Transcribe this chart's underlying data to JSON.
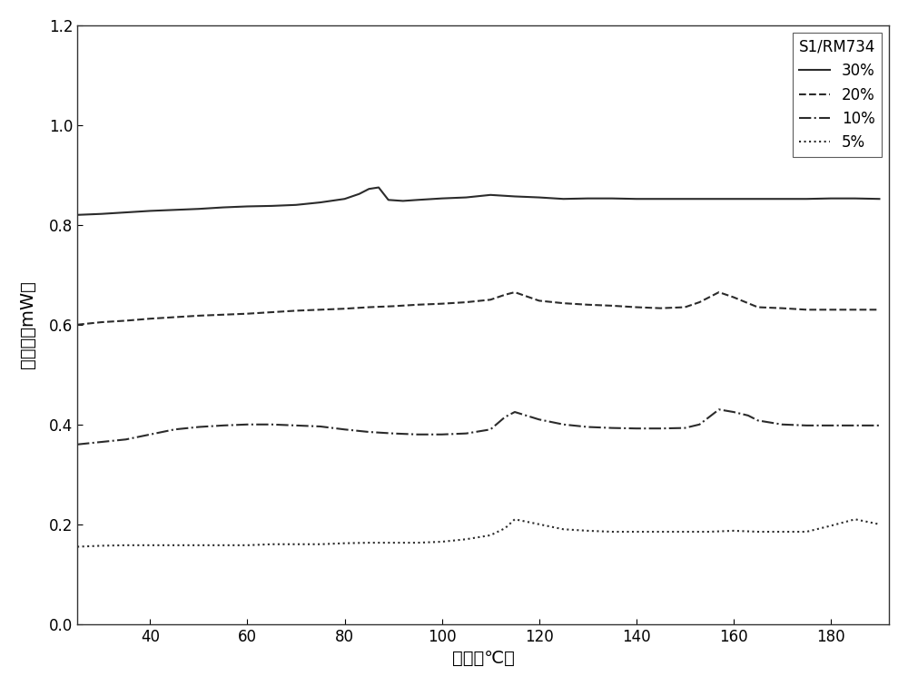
{
  "title": "",
  "xlabel": "温度（℃）",
  "ylabel": "热流率（mW）",
  "xlim": [
    25,
    192
  ],
  "ylim": [
    0.0,
    1.2
  ],
  "xticks": [
    40,
    60,
    80,
    100,
    120,
    140,
    160,
    180
  ],
  "yticks": [
    0.0,
    0.2,
    0.4,
    0.6,
    0.8,
    1.0,
    1.2
  ],
  "legend_title": "S1/RM734",
  "legend_labels": [
    "30%",
    "20%",
    "10%",
    "5%"
  ],
  "line_styles": [
    "-",
    "--",
    "-.",
    ":"
  ],
  "line_color": "#2b2b2b",
  "line_width": 1.5,
  "background_color": "#ffffff",
  "series": {
    "30pct": {
      "x": [
        25,
        30,
        35,
        40,
        45,
        50,
        55,
        60,
        65,
        70,
        75,
        80,
        83,
        85,
        87,
        89,
        92,
        95,
        100,
        105,
        110,
        115,
        120,
        125,
        130,
        135,
        140,
        145,
        150,
        155,
        160,
        165,
        170,
        175,
        180,
        185,
        190
      ],
      "y": [
        0.82,
        0.822,
        0.825,
        0.828,
        0.83,
        0.832,
        0.835,
        0.837,
        0.838,
        0.84,
        0.845,
        0.852,
        0.862,
        0.872,
        0.875,
        0.85,
        0.848,
        0.85,
        0.853,
        0.855,
        0.86,
        0.857,
        0.855,
        0.852,
        0.853,
        0.853,
        0.852,
        0.852,
        0.852,
        0.852,
        0.852,
        0.852,
        0.852,
        0.852,
        0.853,
        0.853,
        0.852
      ]
    },
    "20pct": {
      "x": [
        25,
        30,
        35,
        40,
        45,
        50,
        55,
        60,
        65,
        70,
        75,
        80,
        85,
        90,
        95,
        100,
        105,
        110,
        113,
        115,
        120,
        125,
        130,
        135,
        140,
        145,
        150,
        153,
        157,
        160,
        165,
        170,
        175,
        180,
        185,
        190
      ],
      "y": [
        0.6,
        0.605,
        0.608,
        0.612,
        0.615,
        0.618,
        0.62,
        0.622,
        0.625,
        0.628,
        0.63,
        0.632,
        0.635,
        0.637,
        0.64,
        0.642,
        0.645,
        0.65,
        0.66,
        0.665,
        0.648,
        0.643,
        0.64,
        0.638,
        0.635,
        0.633,
        0.635,
        0.645,
        0.665,
        0.655,
        0.635,
        0.633,
        0.63,
        0.63,
        0.63,
        0.63
      ]
    },
    "10pct": {
      "x": [
        25,
        30,
        35,
        40,
        45,
        50,
        55,
        60,
        65,
        70,
        75,
        80,
        85,
        90,
        95,
        100,
        105,
        110,
        113,
        115,
        120,
        125,
        130,
        135,
        140,
        145,
        150,
        153,
        157,
        160,
        163,
        165,
        170,
        175,
        180,
        185,
        190
      ],
      "y": [
        0.36,
        0.365,
        0.37,
        0.38,
        0.39,
        0.395,
        0.398,
        0.4,
        0.4,
        0.398,
        0.396,
        0.39,
        0.385,
        0.382,
        0.38,
        0.38,
        0.382,
        0.39,
        0.415,
        0.425,
        0.41,
        0.4,
        0.395,
        0.393,
        0.392,
        0.392,
        0.393,
        0.4,
        0.43,
        0.425,
        0.418,
        0.408,
        0.4,
        0.398,
        0.398,
        0.398,
        0.398
      ]
    },
    "5pct": {
      "x": [
        25,
        30,
        35,
        40,
        45,
        50,
        55,
        60,
        65,
        70,
        75,
        80,
        85,
        90,
        95,
        100,
        105,
        110,
        113,
        115,
        120,
        125,
        130,
        135,
        140,
        145,
        150,
        155,
        160,
        165,
        170,
        175,
        180,
        185,
        190
      ],
      "y": [
        0.155,
        0.157,
        0.158,
        0.158,
        0.158,
        0.158,
        0.158,
        0.158,
        0.16,
        0.16,
        0.16,
        0.162,
        0.163,
        0.163,
        0.163,
        0.165,
        0.17,
        0.178,
        0.192,
        0.21,
        0.2,
        0.19,
        0.187,
        0.185,
        0.185,
        0.185,
        0.185,
        0.185,
        0.187,
        0.185,
        0.185,
        0.185,
        0.197,
        0.21,
        0.2
      ]
    }
  }
}
